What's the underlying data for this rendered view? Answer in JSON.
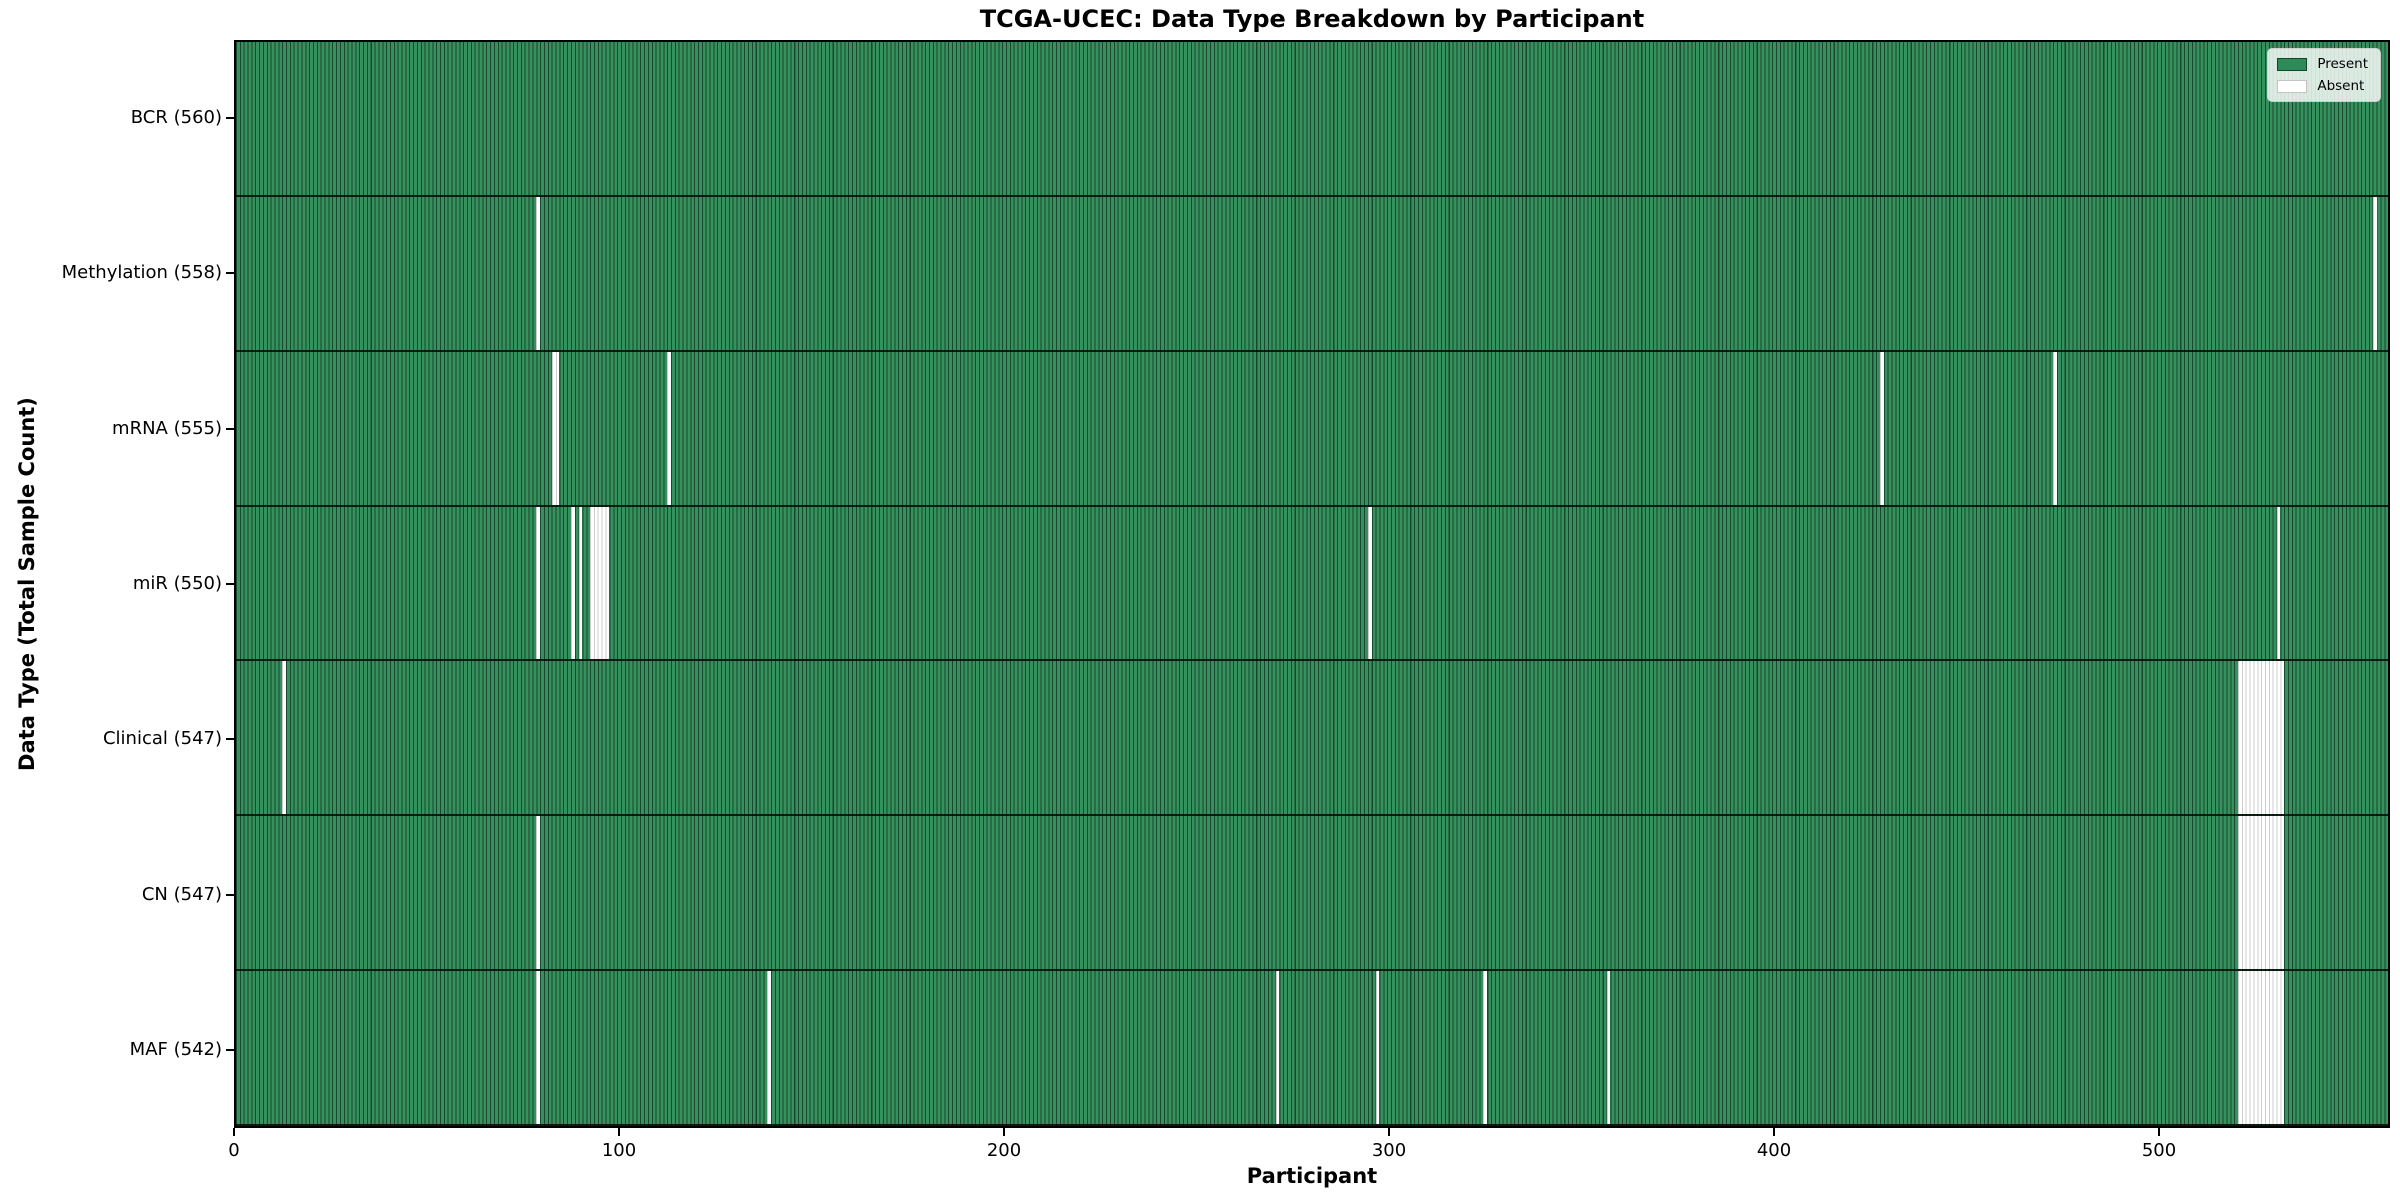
{
  "chart_data": {
    "type": "heatmap",
    "title": "TCGA-UCEC: Data Type Breakdown by Participant",
    "xlabel": "Participant",
    "ylabel": "Data Type (Total Sample Count)",
    "x_ticks": [
      0,
      100,
      200,
      300,
      400,
      500
    ],
    "xlim": [
      0,
      560
    ],
    "total_participants": 560,
    "grid": false,
    "legend": {
      "position": "upper right",
      "entries": [
        {
          "label": "Present",
          "color": "#2e8b57"
        },
        {
          "label": "Absent",
          "color": "#ffffff"
        }
      ]
    },
    "rows": [
      {
        "label": "BCR (560)",
        "data_type": "BCR",
        "present_count": 560,
        "absent_count": 0,
        "absent_runs": []
      },
      {
        "label": "Methylation (558)",
        "data_type": "Methylation",
        "present_count": 558,
        "absent_count": 2,
        "absent_runs": [
          [
            78,
            1
          ],
          [
            555,
            1
          ]
        ]
      },
      {
        "label": "mRNA (555)",
        "data_type": "mRNA",
        "present_count": 555,
        "absent_count": 5,
        "absent_runs": [
          [
            82,
            2
          ],
          [
            112,
            1
          ],
          [
            427,
            1
          ],
          [
            472,
            1
          ]
        ]
      },
      {
        "label": "miR (550)",
        "data_type": "miR",
        "present_count": 550,
        "absent_count": 10,
        "absent_runs": [
          [
            78,
            1
          ],
          [
            87,
            1
          ],
          [
            89,
            1
          ],
          [
            92,
            5
          ],
          [
            294,
            1
          ],
          [
            530,
            1
          ]
        ]
      },
      {
        "label": "Clinical (547)",
        "data_type": "Clinical",
        "present_count": 547,
        "absent_count": 13,
        "absent_runs": [
          [
            12,
            1
          ],
          [
            520,
            12
          ]
        ]
      },
      {
        "label": "CN (547)",
        "data_type": "CN",
        "present_count": 547,
        "absent_count": 13,
        "absent_runs": [
          [
            78,
            1
          ],
          [
            520,
            12
          ]
        ]
      },
      {
        "label": "MAF (542)",
        "data_type": "MAF",
        "present_count": 542,
        "absent_count": 18,
        "absent_runs": [
          [
            78,
            1
          ],
          [
            138,
            1
          ],
          [
            270,
            1
          ],
          [
            296,
            1
          ],
          [
            324,
            1
          ],
          [
            356,
            1
          ],
          [
            520,
            12
          ]
        ]
      }
    ],
    "colors": {
      "present": "#2e8b57",
      "absent": "#ffffff",
      "bar_edge_on_green": "rgba(0,0,0,0.5)",
      "bar_edge_on_white": "#cccccc",
      "text": "#000000"
    }
  }
}
